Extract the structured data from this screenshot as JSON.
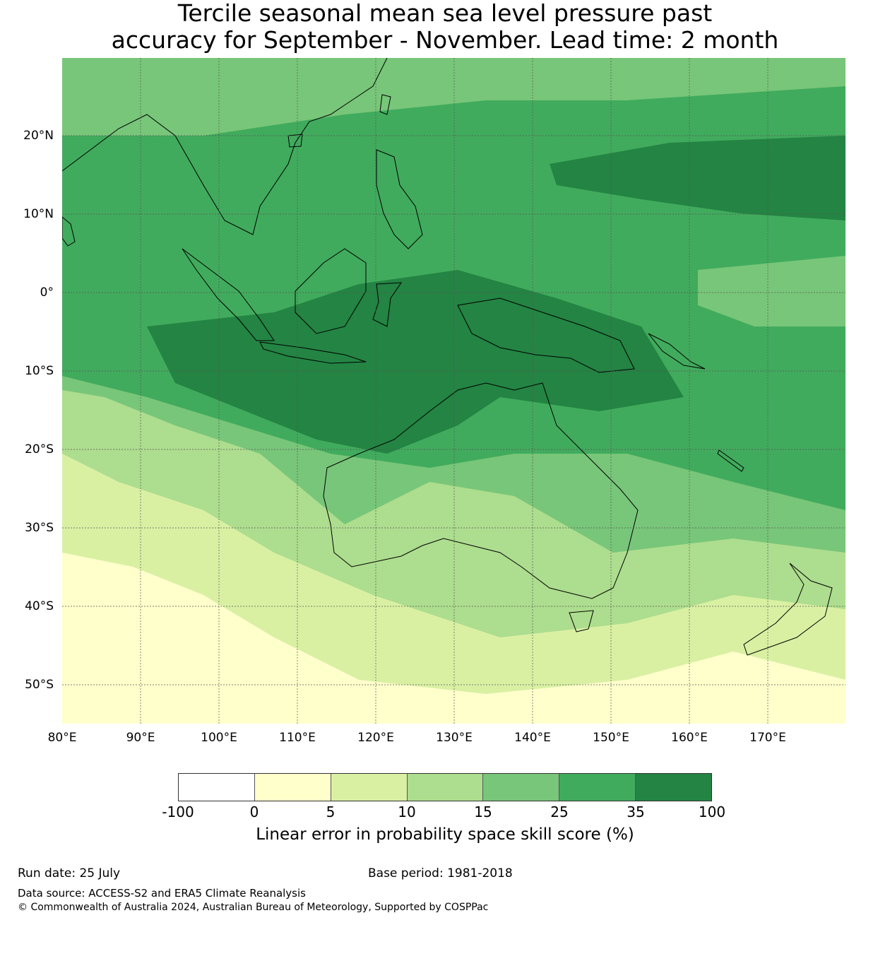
{
  "title_line1": "Tercile seasonal mean sea level pressure past",
  "title_line2": "accuracy for September - November. Lead time: 2 month",
  "map": {
    "region": "Australia and surrounding Pacific / Indian Ocean",
    "lon_range": [
      80,
      180
    ],
    "lat_range": [
      -55,
      30
    ],
    "lat_ticks": [
      "20°N",
      "10°N",
      "0°",
      "10°S",
      "20°S",
      "30°S",
      "40°S",
      "50°S"
    ],
    "lon_ticks": [
      "80°E",
      "90°E",
      "100°E",
      "110°E",
      "120°E",
      "130°E",
      "140°E",
      "150°E",
      "160°E",
      "170°E"
    ],
    "coastline_color": "#000000",
    "gridline_color": "#555555"
  },
  "colorbar": {
    "label": "Linear error in probability space skill score (%)",
    "ticks": [
      "-100",
      "0",
      "5",
      "10",
      "15",
      "25",
      "35",
      "100"
    ],
    "colors": [
      "#ffffff",
      "#ffffcc",
      "#d9f0a3",
      "#addd8e",
      "#78c679",
      "#41ab5d",
      "#238443"
    ]
  },
  "footer": {
    "run_date": "Run date: 25 July",
    "base_period": "Base period: 1981-2018",
    "data_source": "Data source: ACCESS-S2 and ERA5 Climate Reanalysis",
    "copyright": "© Commonwealth of Australia 2024, Australian Bureau of Meteorology, Supported by COSPPac"
  }
}
